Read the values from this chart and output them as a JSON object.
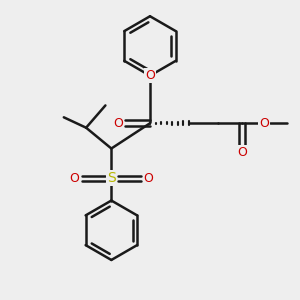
{
  "bg_color": "#eeeeee",
  "bond_color": "#1a1a1a",
  "oxygen_color": "#cc0000",
  "sulfur_color": "#b8b800",
  "line_width": 1.8,
  "fig_size": [
    3.0,
    3.0
  ],
  "dpi": 100,
  "xlim": [
    0,
    10
  ],
  "ylim": [
    0,
    10
  ]
}
